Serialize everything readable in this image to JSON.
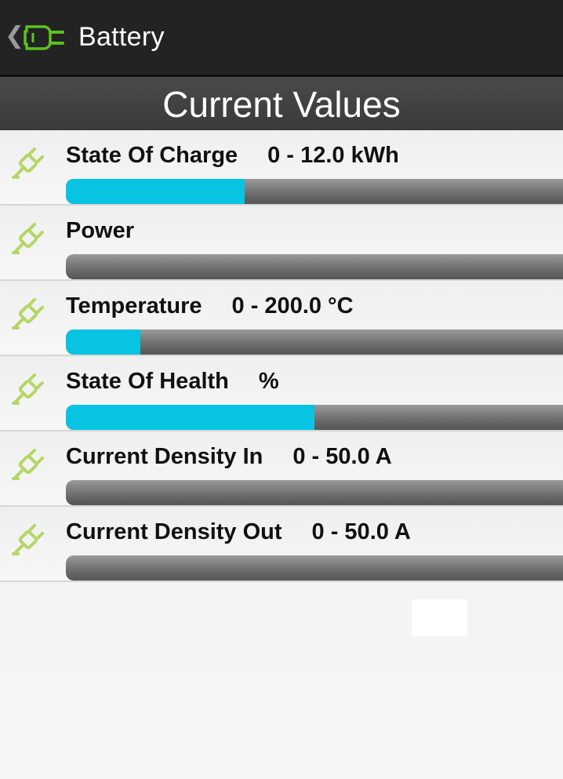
{
  "action_bar": {
    "title": "Battery",
    "back_icon": "chevron-left-icon",
    "app_icon": "battery-plug-icon",
    "icon_color": "#5cc11c"
  },
  "section_header": {
    "title": "Current Values"
  },
  "accent_color": "#08c4e2",
  "items": [
    {
      "label": "State Of Charge",
      "range": "0 - 12.0 kWh",
      "fill_fraction": 0.36,
      "icon": "plug-icon"
    },
    {
      "label": "Power",
      "range": "",
      "fill_fraction": 0,
      "icon": "plug-icon"
    },
    {
      "label": "Temperature",
      "range": "0 - 200.0 °C",
      "fill_fraction": 0.15,
      "icon": "plug-icon"
    },
    {
      "label": "State Of Health",
      "range": "%",
      "fill_fraction": 0.5,
      "icon": "plug-icon"
    },
    {
      "label": "Current Density In",
      "range": "0 - 50.0 A",
      "fill_fraction": 0,
      "icon": "plug-icon"
    },
    {
      "label": "Current Density Out",
      "range": "0 - 50.0 A",
      "fill_fraction": 0,
      "icon": "plug-icon"
    }
  ]
}
